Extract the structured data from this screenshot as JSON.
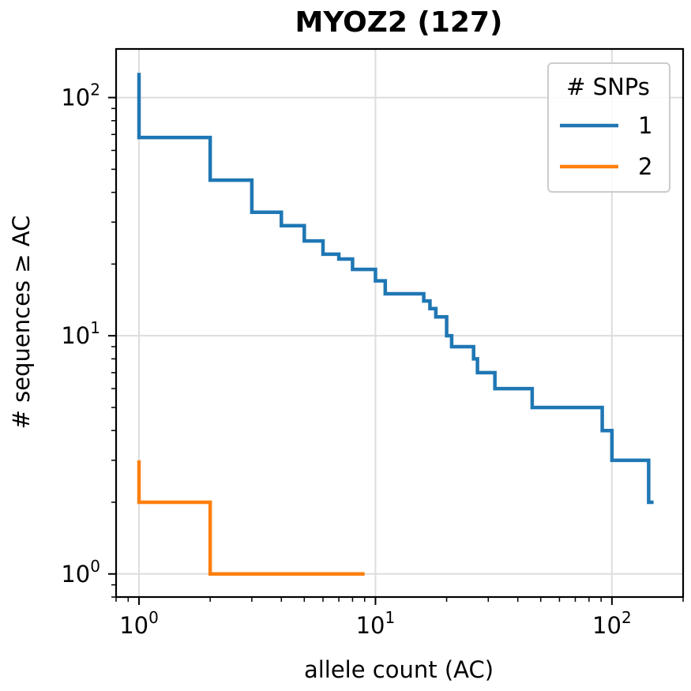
{
  "chart_data": {
    "type": "line",
    "title": "MYOZ2 (127)",
    "xlabel": "allele count (AC)",
    "ylabel": "# sequences ≥ AC",
    "xscale": "log",
    "yscale": "log",
    "xlim": [
      0.8,
      200
    ],
    "ylim": [
      0.8,
      160
    ],
    "x_tick_labels": [
      {
        "base": "10",
        "exp": "0",
        "value": 1
      },
      {
        "base": "10",
        "exp": "1",
        "value": 10
      },
      {
        "base": "10",
        "exp": "2",
        "value": 100
      }
    ],
    "y_tick_labels": [
      {
        "base": "10",
        "exp": "0",
        "value": 1
      },
      {
        "base": "10",
        "exp": "1",
        "value": 10
      },
      {
        "base": "10",
        "exp": "2",
        "value": 100
      }
    ],
    "grid": true,
    "legend": {
      "title": "# SNPs",
      "placement": "top-right"
    },
    "series": [
      {
        "name": "1",
        "color": "#1f77b4",
        "step": "post",
        "x": [
          1,
          1,
          2,
          3,
          4,
          5,
          6,
          7,
          8,
          10,
          11,
          16,
          17,
          18,
          20,
          21,
          26,
          27,
          32,
          46,
          91,
          100,
          143,
          150
        ],
        "y": [
          127,
          68,
          45,
          33,
          29,
          25,
          22,
          21,
          19,
          17,
          15,
          14,
          13,
          12,
          10,
          9,
          8,
          7,
          6,
          5,
          4,
          3,
          2,
          2
        ]
      },
      {
        "name": "2",
        "color": "#ff7f0e",
        "step": "post",
        "x": [
          1,
          1,
          2,
          9
        ],
        "y": [
          3,
          2,
          1,
          1
        ]
      }
    ]
  }
}
